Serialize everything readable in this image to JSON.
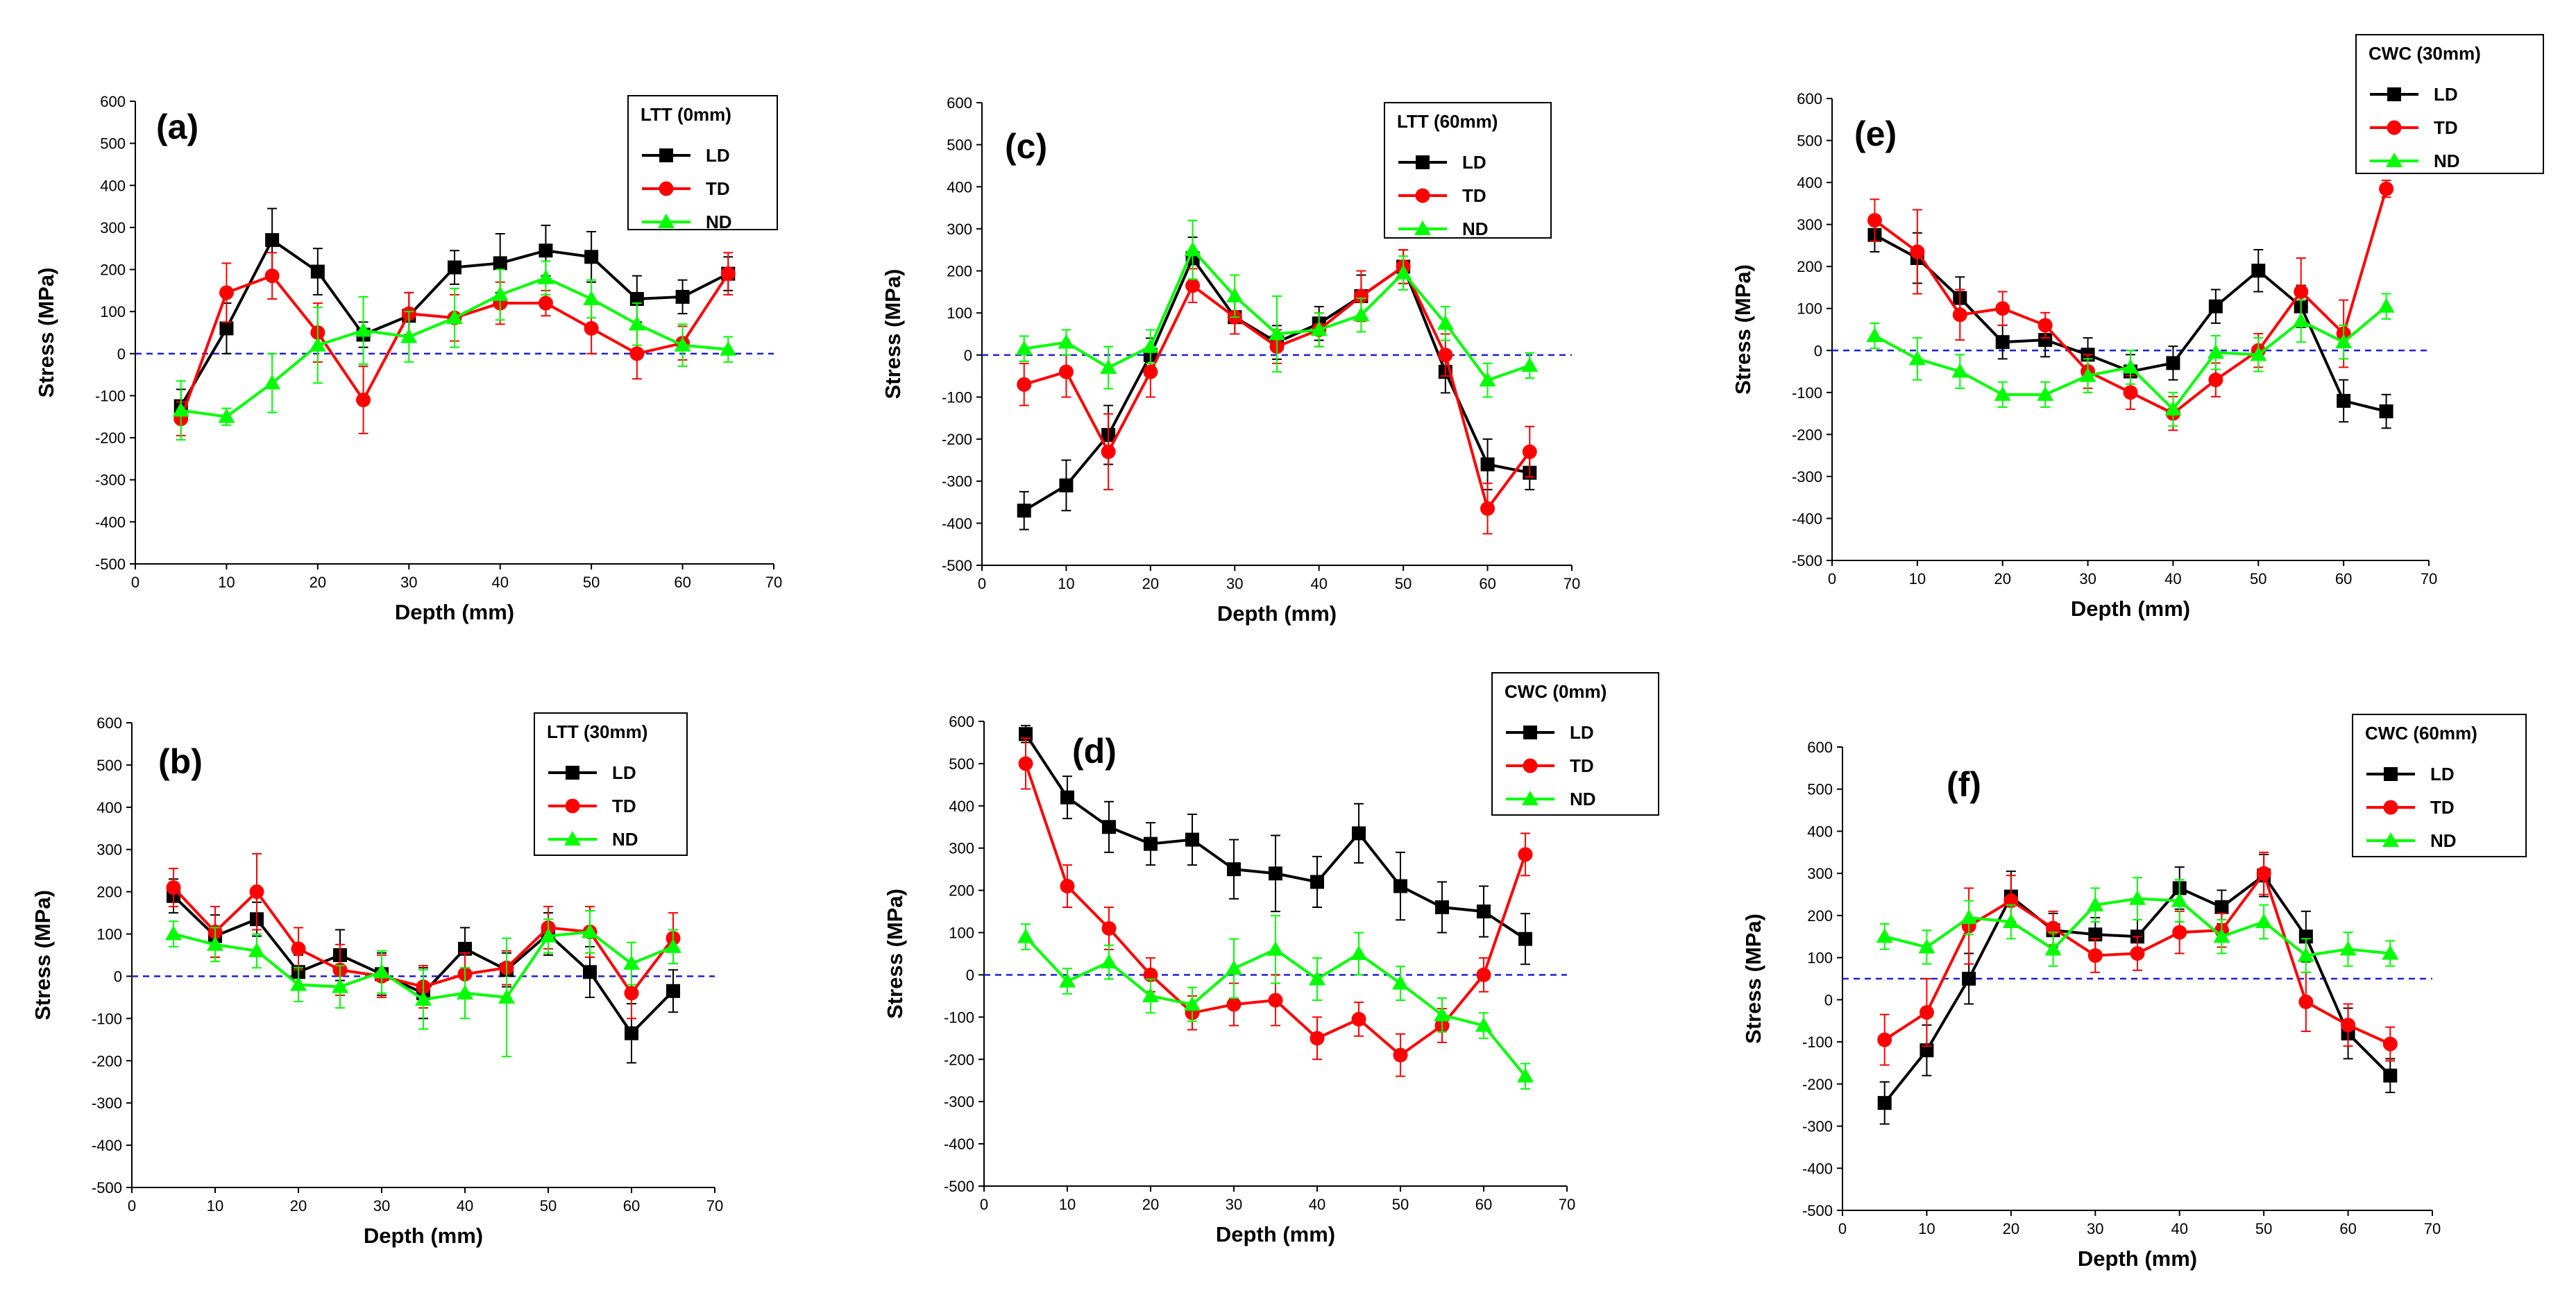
{
  "figure": {
    "background": "#ffffff"
  },
  "chart_data": [
    {
      "type": "line",
      "panel_label": "(a)",
      "title": "LTT (0mm)",
      "xlabel": "Depth (mm)",
      "ylabel": "Stress (MPa)",
      "xlim": [
        0,
        70
      ],
      "ylim": [
        -500,
        600
      ],
      "xticks": [
        0,
        10,
        20,
        30,
        40,
        50,
        60,
        70
      ],
      "yticks": [
        -500,
        -400,
        -300,
        -200,
        -100,
        0,
        100,
        200,
        300,
        400,
        500,
        600
      ],
      "reference_line": {
        "y": 0,
        "color": "#1f1fd6",
        "style": "dashed"
      },
      "x": [
        5,
        10,
        15,
        20,
        25,
        30,
        35,
        40,
        45,
        50,
        55,
        60,
        65
      ],
      "series": [
        {
          "name": "LD",
          "color": "#000000",
          "marker": "square",
          "values": [
            -125,
            60,
            270,
            195,
            45,
            90,
            205,
            215,
            245,
            230,
            130,
            135,
            190
          ],
          "errors": [
            40,
            60,
            75,
            55,
            30,
            55,
            40,
            70,
            60,
            60,
            55,
            40,
            40
          ]
        },
        {
          "name": "TD",
          "color": "#ff0000",
          "marker": "circle",
          "values": [
            -155,
            145,
            185,
            50,
            -110,
            95,
            85,
            120,
            120,
            60,
            0,
            25,
            190
          ],
          "errors": [
            40,
            70,
            55,
            70,
            80,
            50,
            55,
            50,
            30,
            60,
            60,
            40,
            50
          ]
        },
        {
          "name": "ND",
          "color": "#00ff00",
          "marker": "triangle",
          "values": [
            -135,
            -150,
            -70,
            20,
            55,
            40,
            85,
            140,
            180,
            130,
            70,
            20,
            10
          ],
          "errors": [
            70,
            20,
            70,
            90,
            80,
            60,
            70,
            60,
            40,
            45,
            50,
            50,
            30
          ]
        }
      ]
    },
    {
      "type": "line",
      "panel_label": "(b)",
      "title": "LTT (30mm)",
      "xlabel": "Depth (mm)",
      "ylabel": "Stress (MPa)",
      "xlim": [
        0,
        70
      ],
      "ylim": [
        -500,
        600
      ],
      "xticks": [
        0,
        10,
        20,
        30,
        40,
        50,
        60,
        70
      ],
      "yticks": [
        -500,
        -400,
        -300,
        -200,
        -100,
        0,
        100,
        200,
        300,
        400,
        500,
        600
      ],
      "reference_line": {
        "y": 0,
        "color": "#1f1fd6",
        "style": "dashed"
      },
      "x": [
        5,
        10,
        15,
        20,
        25,
        30,
        35,
        40,
        45,
        50,
        55,
        60,
        65
      ],
      "series": [
        {
          "name": "LD",
          "color": "#000000",
          "marker": "square",
          "values": [
            190,
            95,
            135,
            10,
            50,
            5,
            -40,
            65,
            15,
            100,
            10,
            -135,
            -35
          ],
          "errors": [
            40,
            50,
            40,
            40,
            60,
            50,
            60,
            50,
            40,
            50,
            60,
            70,
            50
          ]
        },
        {
          "name": "TD",
          "color": "#ff0000",
          "marker": "circle",
          "values": [
            210,
            105,
            200,
            65,
            15,
            0,
            -25,
            5,
            20,
            115,
            105,
            -40,
            90
          ],
          "errors": [
            45,
            60,
            90,
            50,
            60,
            50,
            50,
            50,
            40,
            50,
            60,
            60,
            60
          ]
        },
        {
          "name": "ND",
          "color": "#00ff00",
          "marker": "triangle",
          "values": [
            100,
            75,
            60,
            -20,
            -25,
            10,
            -55,
            -40,
            -50,
            95,
            105,
            30,
            70
          ],
          "errors": [
            30,
            40,
            40,
            40,
            50,
            50,
            70,
            60,
            140,
            40,
            50,
            50,
            40
          ]
        }
      ]
    },
    {
      "type": "line",
      "panel_label": "(c)",
      "title": "LTT (60mm)",
      "xlabel": "Depth (mm)",
      "ylabel": "Stress (MPa)",
      "xlim": [
        0,
        70
      ],
      "ylim": [
        -500,
        600
      ],
      "xticks": [
        0,
        10,
        20,
        30,
        40,
        50,
        60,
        70
      ],
      "yticks": [
        -500,
        -400,
        -300,
        -200,
        -100,
        0,
        100,
        200,
        300,
        400,
        500,
        600
      ],
      "reference_line": {
        "y": 0,
        "color": "#1f1fd6",
        "style": "dashed"
      },
      "x": [
        5,
        10,
        15,
        20,
        25,
        30,
        35,
        40,
        45,
        50,
        55,
        60,
        65
      ],
      "series": [
        {
          "name": "LD",
          "color": "#000000",
          "marker": "square",
          "values": [
            -370,
            -310,
            -190,
            0,
            230,
            90,
            30,
            75,
            140,
            210,
            -40,
            -260,
            -280
          ],
          "errors": [
            45,
            60,
            70,
            40,
            50,
            40,
            40,
            40,
            50,
            40,
            50,
            60,
            40
          ]
        },
        {
          "name": "TD",
          "color": "#ff0000",
          "marker": "circle",
          "values": [
            -70,
            -40,
            -230,
            -40,
            165,
            90,
            20,
            60,
            140,
            210,
            0,
            -365,
            -230
          ],
          "errors": [
            50,
            60,
            90,
            60,
            40,
            40,
            40,
            40,
            60,
            40,
            50,
            60,
            60
          ]
        },
        {
          "name": "ND",
          "color": "#00ff00",
          "marker": "triangle",
          "values": [
            15,
            30,
            -30,
            20,
            250,
            140,
            50,
            60,
            95,
            195,
            75,
            -60,
            -25
          ],
          "errors": [
            30,
            30,
            50,
            40,
            70,
            50,
            90,
            40,
            40,
            40,
            40,
            40,
            30
          ]
        }
      ]
    },
    {
      "type": "line",
      "panel_label": "(d)",
      "title": "CWC (0mm)",
      "xlabel": "Depth (mm)",
      "ylabel": "Stress (MPa)",
      "xlim": [
        0,
        70
      ],
      "ylim": [
        -500,
        600
      ],
      "xticks": [
        0,
        10,
        20,
        30,
        40,
        50,
        60,
        70
      ],
      "yticks": [
        -500,
        -400,
        -300,
        -200,
        -100,
        0,
        100,
        200,
        300,
        400,
        500,
        600
      ],
      "reference_line": {
        "y": 0,
        "color": "#1f1fd6",
        "style": "dashed"
      },
      "x": [
        5,
        10,
        15,
        20,
        25,
        30,
        35,
        40,
        45,
        50,
        55,
        60,
        65
      ],
      "series": [
        {
          "name": "LD",
          "color": "#000000",
          "marker": "square",
          "values": [
            570,
            420,
            350,
            310,
            320,
            250,
            240,
            220,
            335,
            210,
            160,
            150,
            85
          ],
          "errors": [
            20,
            50,
            60,
            50,
            60,
            70,
            90,
            60,
            70,
            80,
            60,
            60,
            60
          ]
        },
        {
          "name": "TD",
          "color": "#ff0000",
          "marker": "circle",
          "values": [
            500,
            210,
            110,
            0,
            -90,
            -70,
            -60,
            -150,
            -105,
            -190,
            -120,
            0,
            285
          ],
          "errors": [
            60,
            50,
            50,
            40,
            40,
            50,
            60,
            50,
            40,
            50,
            40,
            40,
            50
          ]
        },
        {
          "name": "ND",
          "color": "#00ff00",
          "marker": "triangle",
          "values": [
            90,
            -15,
            30,
            -50,
            -70,
            15,
            60,
            -10,
            50,
            -20,
            -95,
            -120,
            -240
          ],
          "errors": [
            30,
            30,
            40,
            40,
            40,
            70,
            80,
            50,
            50,
            40,
            40,
            30,
            30
          ]
        }
      ]
    },
    {
      "type": "line",
      "panel_label": "(e)",
      "title": "CWC (30mm)",
      "xlabel": "Depth (mm)",
      "ylabel": "Stress (MPa)",
      "xlim": [
        0,
        70
      ],
      "ylim": [
        -500,
        600
      ],
      "xticks": [
        0,
        10,
        20,
        30,
        40,
        50,
        60,
        70
      ],
      "yticks": [
        -500,
        -400,
        -300,
        -200,
        -100,
        0,
        100,
        200,
        300,
        400,
        500,
        600
      ],
      "reference_line": {
        "y": 0,
        "color": "#1f1fd6",
        "style": "dashed"
      },
      "x": [
        5,
        10,
        15,
        20,
        25,
        30,
        35,
        40,
        45,
        50,
        55,
        60,
        65
      ],
      "series": [
        {
          "name": "LD",
          "color": "#000000",
          "marker": "square",
          "values": [
            275,
            220,
            125,
            20,
            25,
            -10,
            -50,
            -30,
            105,
            190,
            105,
            -120,
            -145
          ],
          "errors": [
            40,
            60,
            50,
            40,
            40,
            40,
            40,
            40,
            40,
            50,
            50,
            50,
            40
          ]
        },
        {
          "name": "TD",
          "color": "#ff0000",
          "marker": "circle",
          "values": [
            310,
            235,
            85,
            100,
            60,
            -50,
            -100,
            -150,
            -70,
            0,
            140,
            40,
            385
          ],
          "errors": [
            50,
            100,
            60,
            40,
            30,
            40,
            40,
            40,
            40,
            40,
            80,
            80,
            20
          ]
        },
        {
          "name": "ND",
          "color": "#00ff00",
          "marker": "triangle",
          "values": [
            35,
            -20,
            -50,
            -105,
            -105,
            -60,
            -40,
            -140,
            -5,
            -10,
            70,
            20,
            105
          ],
          "errors": [
            30,
            50,
            40,
            30,
            30,
            40,
            40,
            40,
            40,
            40,
            50,
            40,
            30
          ]
        }
      ]
    },
    {
      "type": "line",
      "panel_label": "(f)",
      "title": "CWC (60mm)",
      "xlabel": "Depth (mm)",
      "ylabel": "Stress (MPa)",
      "xlim": [
        0,
        70
      ],
      "ylim": [
        -500,
        600
      ],
      "xticks": [
        0,
        10,
        20,
        30,
        40,
        50,
        60,
        70
      ],
      "yticks": [
        -500,
        -400,
        -300,
        -200,
        -100,
        0,
        100,
        200,
        300,
        400,
        500,
        600
      ],
      "reference_line": {
        "y": 50,
        "color": "#1f1fd6",
        "style": "dashed"
      },
      "x": [
        5,
        10,
        15,
        20,
        25,
        30,
        35,
        40,
        45,
        50,
        55,
        60,
        65
      ],
      "series": [
        {
          "name": "LD",
          "color": "#000000",
          "marker": "square",
          "values": [
            -245,
            -120,
            50,
            245,
            165,
            155,
            150,
            265,
            220,
            295,
            150,
            -80,
            -180
          ],
          "errors": [
            50,
            60,
            60,
            60,
            40,
            40,
            40,
            50,
            40,
            50,
            60,
            60,
            40
          ]
        },
        {
          "name": "TD",
          "color": "#ff0000",
          "marker": "circle",
          "values": [
            -95,
            -30,
            175,
            235,
            170,
            105,
            110,
            160,
            165,
            300,
            -5,
            -60,
            -105
          ],
          "errors": [
            60,
            80,
            90,
            60,
            40,
            40,
            40,
            50,
            40,
            50,
            70,
            50,
            40
          ]
        },
        {
          "name": "ND",
          "color": "#00ff00",
          "marker": "triangle",
          "values": [
            150,
            125,
            195,
            185,
            120,
            225,
            240,
            235,
            150,
            185,
            105,
            120,
            110
          ],
          "errors": [
            30,
            40,
            40,
            40,
            40,
            40,
            50,
            50,
            40,
            40,
            40,
            40,
            30
          ]
        }
      ]
    }
  ]
}
